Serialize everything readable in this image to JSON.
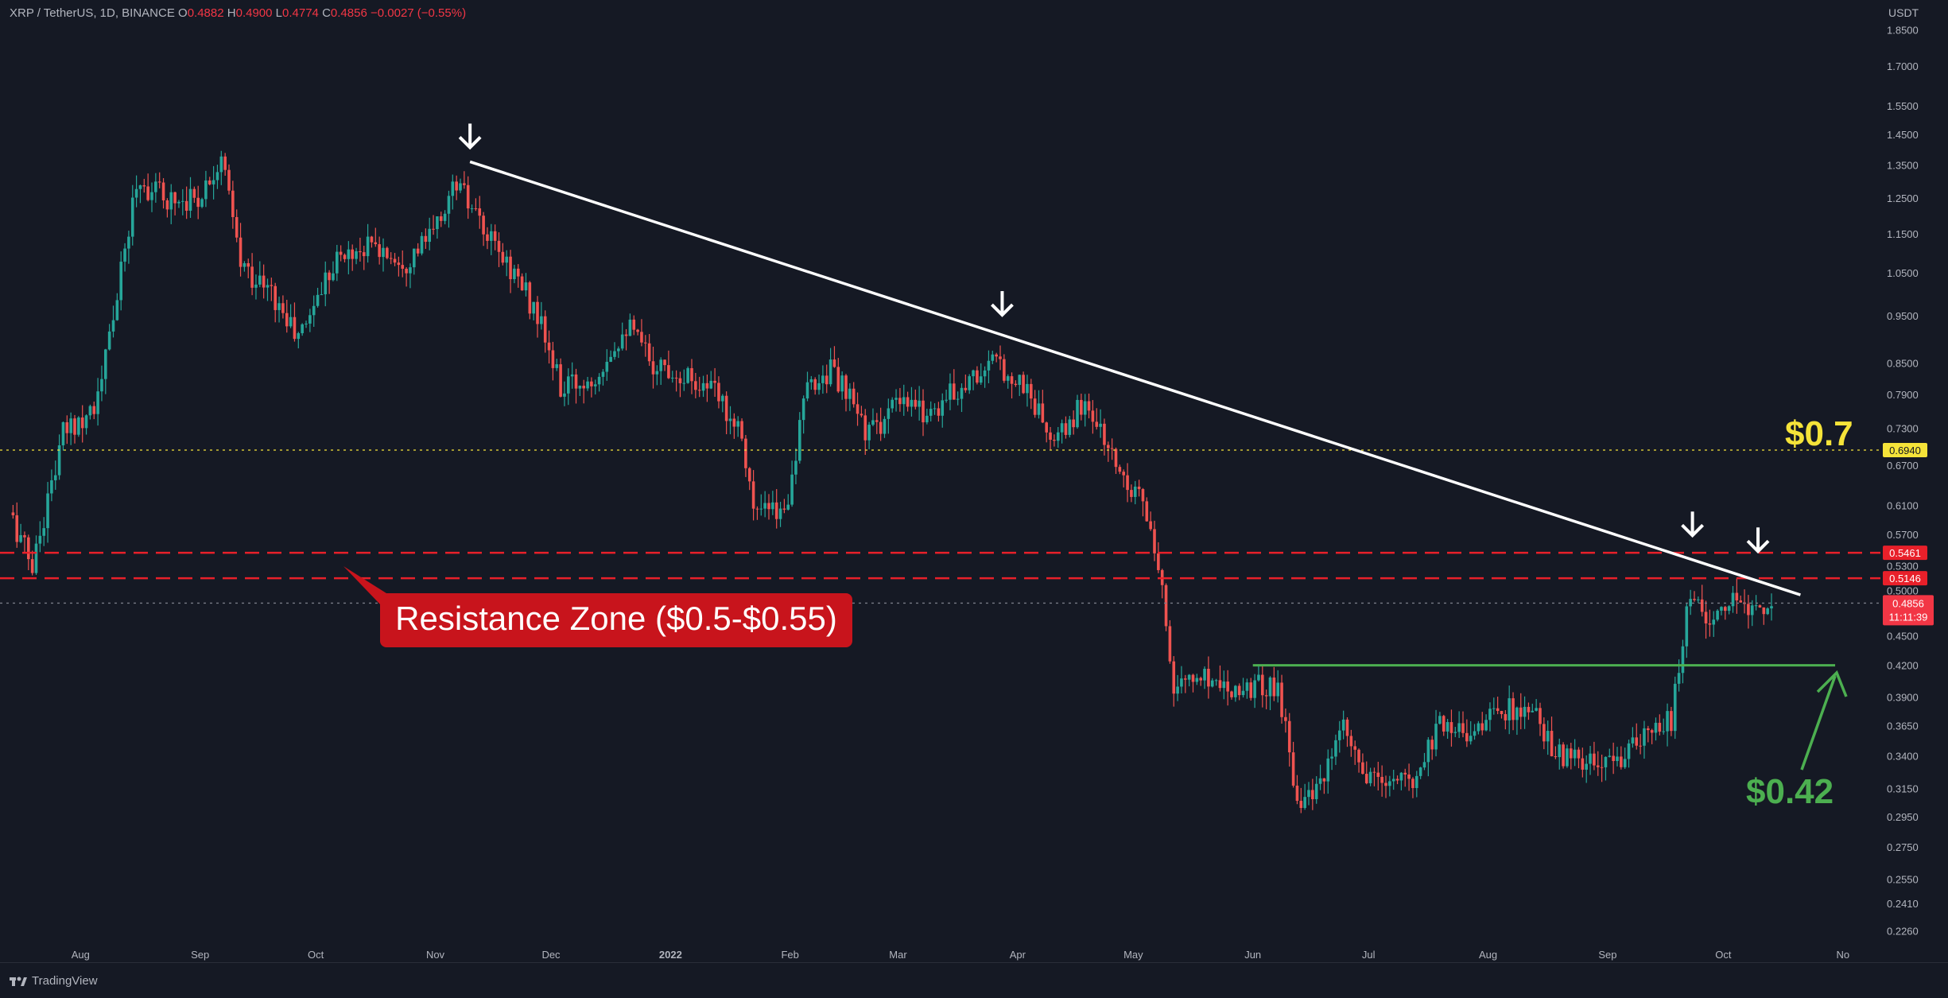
{
  "header": {
    "symbol": "XRP / TetherUS, 1D, BINANCE",
    "o_label": "O",
    "o_value": "0.4882",
    "h_label": "H",
    "h_value": "0.4900",
    "l_label": "L",
    "l_value": "0.4774",
    "c_label": "C",
    "c_value": "0.4856",
    "change": "−0.0027 (−0.55%)",
    "currency": "USDT"
  },
  "footer": {
    "brand": "TradingView"
  },
  "colors": {
    "background": "#151924",
    "bullish": "#26a69a",
    "bearish": "#ef5350",
    "trendline": "#ffffff",
    "resistance": "#e8202a",
    "support": "#4caf50",
    "level_yellow": "#f5e339",
    "axis_text": "#b2b5be"
  },
  "chart_data": {
    "type": "candlestick",
    "scale": "log",
    "ylim": [
      0.214,
      1.94
    ],
    "x_axis_ticks": [
      "Aug",
      "Sep",
      "Oct",
      "Nov",
      "Dec",
      "2022",
      "Feb",
      "Mar",
      "Apr",
      "May",
      "Jun",
      "Jul",
      "Aug",
      "Sep",
      "Oct",
      "No"
    ],
    "y_axis_ticks": [
      "1.8500",
      "1.7000",
      "1.5500",
      "1.4500",
      "1.3500",
      "1.2500",
      "1.1500",
      "1.0500",
      "0.9500",
      "0.8500",
      "0.7900",
      "0.7300",
      "0.6700",
      "0.6100",
      "0.5700",
      "0.5300",
      "0.5000",
      "0.4500",
      "0.4200",
      "0.3900",
      "0.3650",
      "0.3400",
      "0.3150",
      "0.2950",
      "0.2750",
      "0.2550",
      "0.2410",
      "0.2260"
    ],
    "price_path": [
      [
        "2021-07-14",
        0.6
      ],
      [
        "2021-07-20",
        0.53
      ],
      [
        "2021-07-28",
        0.72
      ],
      [
        "2021-08-06",
        0.78
      ],
      [
        "2021-08-13",
        1.1
      ],
      [
        "2021-08-16",
        1.3
      ],
      [
        "2021-08-24",
        1.25
      ],
      [
        "2021-09-01",
        1.25
      ],
      [
        "2021-09-07",
        1.38
      ],
      [
        "2021-09-12",
        1.07
      ],
      [
        "2021-09-20",
        1.0
      ],
      [
        "2021-09-27",
        0.9
      ],
      [
        "2021-10-06",
        1.08
      ],
      [
        "2021-10-15",
        1.12
      ],
      [
        "2021-10-25",
        1.08
      ],
      [
        "2021-11-01",
        1.15
      ],
      [
        "2021-11-07",
        1.3
      ],
      [
        "2021-11-14",
        1.15
      ],
      [
        "2021-11-22",
        1.05
      ],
      [
        "2021-11-28",
        0.95
      ],
      [
        "2021-12-04",
        0.8
      ],
      [
        "2021-12-12",
        0.82
      ],
      [
        "2021-12-21",
        0.93
      ],
      [
        "2021-12-28",
        0.85
      ],
      [
        "2022-01-05",
        0.83
      ],
      [
        "2022-01-12",
        0.8
      ],
      [
        "2022-01-20",
        0.73
      ],
      [
        "2022-01-23",
        0.6
      ],
      [
        "2022-01-31",
        0.6
      ],
      [
        "2022-02-06",
        0.8
      ],
      [
        "2022-02-12",
        0.84
      ],
      [
        "2022-02-22",
        0.72
      ],
      [
        "2022-03-01",
        0.77
      ],
      [
        "2022-03-10",
        0.76
      ],
      [
        "2022-03-20",
        0.82
      ],
      [
        "2022-03-27",
        0.85
      ],
      [
        "2022-04-04",
        0.8
      ],
      [
        "2022-04-11",
        0.7
      ],
      [
        "2022-04-19",
        0.78
      ],
      [
        "2022-04-27",
        0.67
      ],
      [
        "2022-05-04",
        0.62
      ],
      [
        "2022-05-10",
        0.47
      ],
      [
        "2022-05-12",
        0.4
      ],
      [
        "2022-05-20",
        0.41
      ],
      [
        "2022-05-28",
        0.4
      ],
      [
        "2022-06-08",
        0.4
      ],
      [
        "2022-06-13",
        0.31
      ],
      [
        "2022-06-18",
        0.31
      ],
      [
        "2022-06-25",
        0.36
      ],
      [
        "2022-07-01",
        0.32
      ],
      [
        "2022-07-13",
        0.32
      ],
      [
        "2022-07-20",
        0.37
      ],
      [
        "2022-07-27",
        0.36
      ],
      [
        "2022-08-06",
        0.38
      ],
      [
        "2022-08-14",
        0.37
      ],
      [
        "2022-08-20",
        0.34
      ],
      [
        "2022-08-31",
        0.33
      ],
      [
        "2022-09-10",
        0.35
      ],
      [
        "2022-09-18",
        0.37
      ],
      [
        "2022-09-23",
        0.5
      ],
      [
        "2022-09-29",
        0.46
      ],
      [
        "2022-10-05",
        0.49
      ],
      [
        "2022-10-10",
        0.48
      ],
      [
        "2022-10-14",
        0.4856
      ]
    ],
    "trendline": {
      "from": [
        "2021-11-10",
        1.36
      ],
      "to": [
        "2022-10-21",
        0.495
      ],
      "color": "#ffffff"
    },
    "lower_highs_marked": [
      [
        "2021-11-10",
        1.36
      ],
      [
        "2022-03-28",
        0.92
      ],
      [
        "2022-09-23",
        0.55
      ],
      [
        "2022-10-10",
        0.53
      ]
    ],
    "horizontal_levels": [
      {
        "price": 0.694,
        "label": "0.6940",
        "style": "dotted",
        "color": "#f5e339"
      },
      {
        "price": 0.5461,
        "label": "0.5461",
        "style": "dashed",
        "color": "#e8202a"
      },
      {
        "price": 0.5146,
        "label": "0.5146",
        "style": "dashed",
        "color": "#e8202a"
      },
      {
        "price": 0.4856,
        "label": "0.4856",
        "style": "dotted",
        "color": "#787b86"
      }
    ],
    "support_line": {
      "price": 0.42,
      "from": "2022-06-01",
      "to": "2022-10-30",
      "color": "#4caf50"
    },
    "current_price": {
      "value": "0.4856",
      "countdown": "11:11:39"
    },
    "annotations": [
      {
        "text": "$0.7",
        "color": "#f5e339"
      },
      {
        "text": "Resistance Zone ($0.5-$0.55)",
        "color": "#ffffff",
        "background": "#c8141c"
      },
      {
        "text": "$0.42",
        "color": "#4caf50"
      }
    ]
  }
}
